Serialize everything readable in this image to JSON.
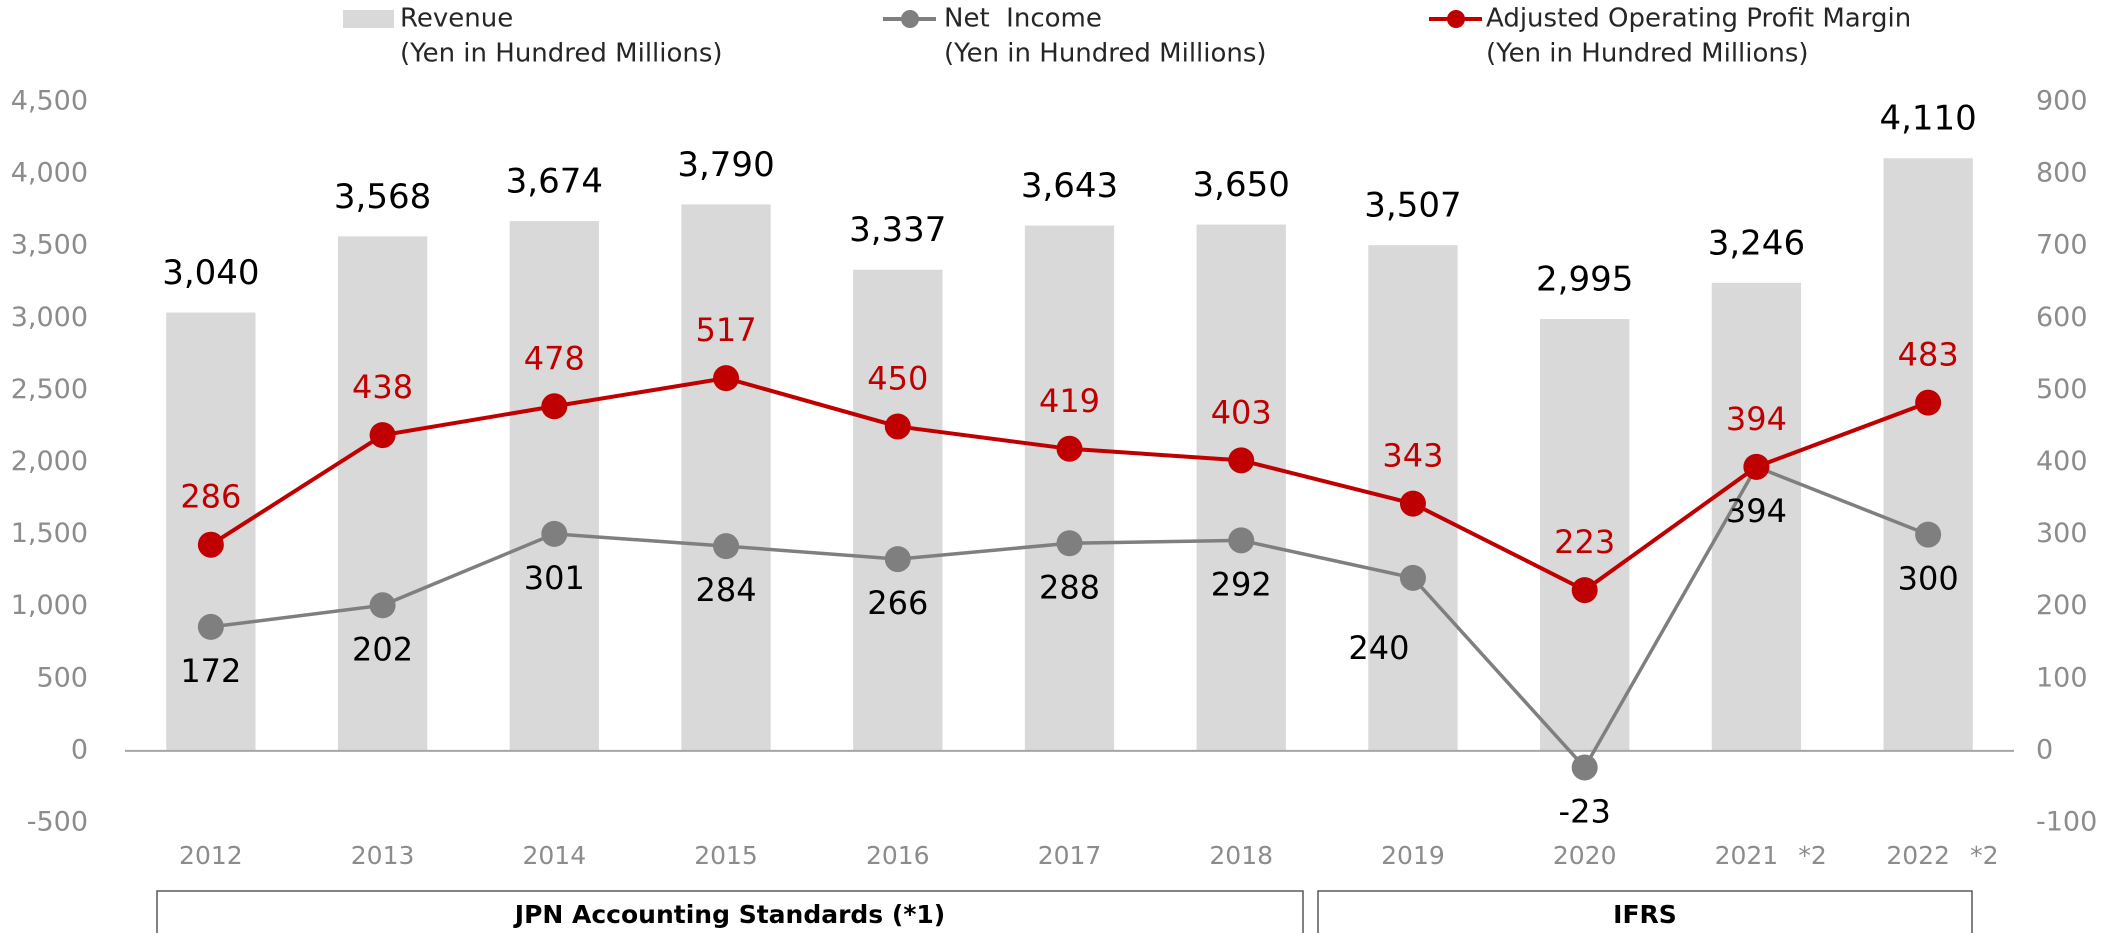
{
  "chart_data": {
    "type": "bar_line",
    "categories": [
      "2012",
      "2013",
      "2014",
      "2015",
      "2016",
      "2017",
      "2018",
      "2019",
      "2020",
      "2021",
      "2022"
    ],
    "category_notes": [
      null,
      null,
      null,
      null,
      null,
      null,
      null,
      null,
      null,
      "*2",
      "*2"
    ],
    "series": [
      {
        "name": "Revenue",
        "unit": "(Yen in Hundred Millions)",
        "type": "bar",
        "color": "#d9d9d9",
        "values": [
          3040,
          3568,
          3674,
          3790,
          3337,
          3643,
          3650,
          3507,
          2995,
          3246,
          4110
        ],
        "value_labels": [
          "3,040",
          "3,568",
          "3,674",
          "3,790",
          "3,337",
          "3,643",
          "3,650",
          "3,507",
          "2,995",
          "3,246",
          "4,110"
        ]
      },
      {
        "name": "Net  Income",
        "unit": "(Yen in Hundred Millions)",
        "type": "line",
        "axis": "y2",
        "color": "#7f7f7f",
        "values": [
          172,
          202,
          301,
          284,
          266,
          288,
          292,
          240,
          -23,
          394,
          300
        ]
      },
      {
        "name": "Adjusted Operating Profit Margin",
        "unit": "(Yen in Hundred Millions)",
        "type": "line",
        "axis": "y2",
        "color": "#c00000",
        "values": [
          286,
          438,
          478,
          517,
          450,
          419,
          403,
          343,
          223,
          394,
          483
        ]
      }
    ],
    "ylim": [
      -500,
      4500
    ],
    "yticks": [
      -500,
      0,
      500,
      {
        "value": 1000,
        "label": "1,000"
      },
      {
        "value": 1500,
        "label": "1,500"
      },
      {
        "value": 2000,
        "label": "2,000"
      },
      {
        "value": 2500,
        "label": "2,500"
      },
      {
        "value": 3000,
        "label": "3,000"
      },
      {
        "value": 3500,
        "label": "3,500"
      },
      {
        "value": 4000,
        "label": "4,000"
      },
      {
        "value": 4500,
        "label": "4,500"
      }
    ],
    "y2lim": [
      -100,
      900
    ],
    "y2ticks": [
      -100,
      0,
      100,
      200,
      300,
      400,
      500,
      600,
      700,
      800,
      900
    ],
    "grid": false,
    "groups": [
      "JPN Accounting Standards (*1)",
      "IFRS"
    ]
  }
}
